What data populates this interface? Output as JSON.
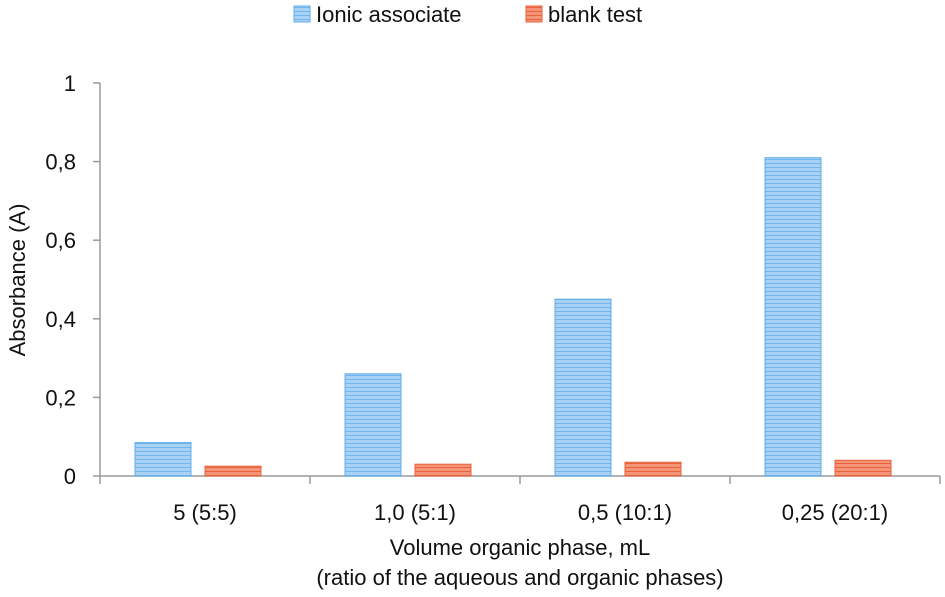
{
  "chart_data": {
    "type": "bar",
    "categories": [
      "5 (5:5)",
      "1,0 (5:1)",
      "0,5 (10:1)",
      "0,25 (20:1)"
    ],
    "series": [
      {
        "name": "Ionic associate",
        "values": [
          0.085,
          0.26,
          0.45,
          0.81
        ],
        "color": "#A9D1F4",
        "stroke": "#5DADEC"
      },
      {
        "name": "blank test",
        "values": [
          0.025,
          0.03,
          0.035,
          0.04
        ],
        "color": "#F28C6E",
        "stroke": "#E8623A"
      }
    ],
    "title": "",
    "xlabel": "Volume organic phase, mL",
    "xlabel2": "(ratio of the aqueous and organic phases)",
    "ylabel": "Absorbance (A)",
    "ylim": [
      0,
      1
    ],
    "yticks": [
      "0",
      "0,2",
      "0,4",
      "0,6",
      "0,8",
      "1"
    ],
    "ytick_values": [
      0,
      0.2,
      0.4,
      0.6,
      0.8,
      1
    ],
    "grid": false,
    "legend_position": "top-center"
  }
}
